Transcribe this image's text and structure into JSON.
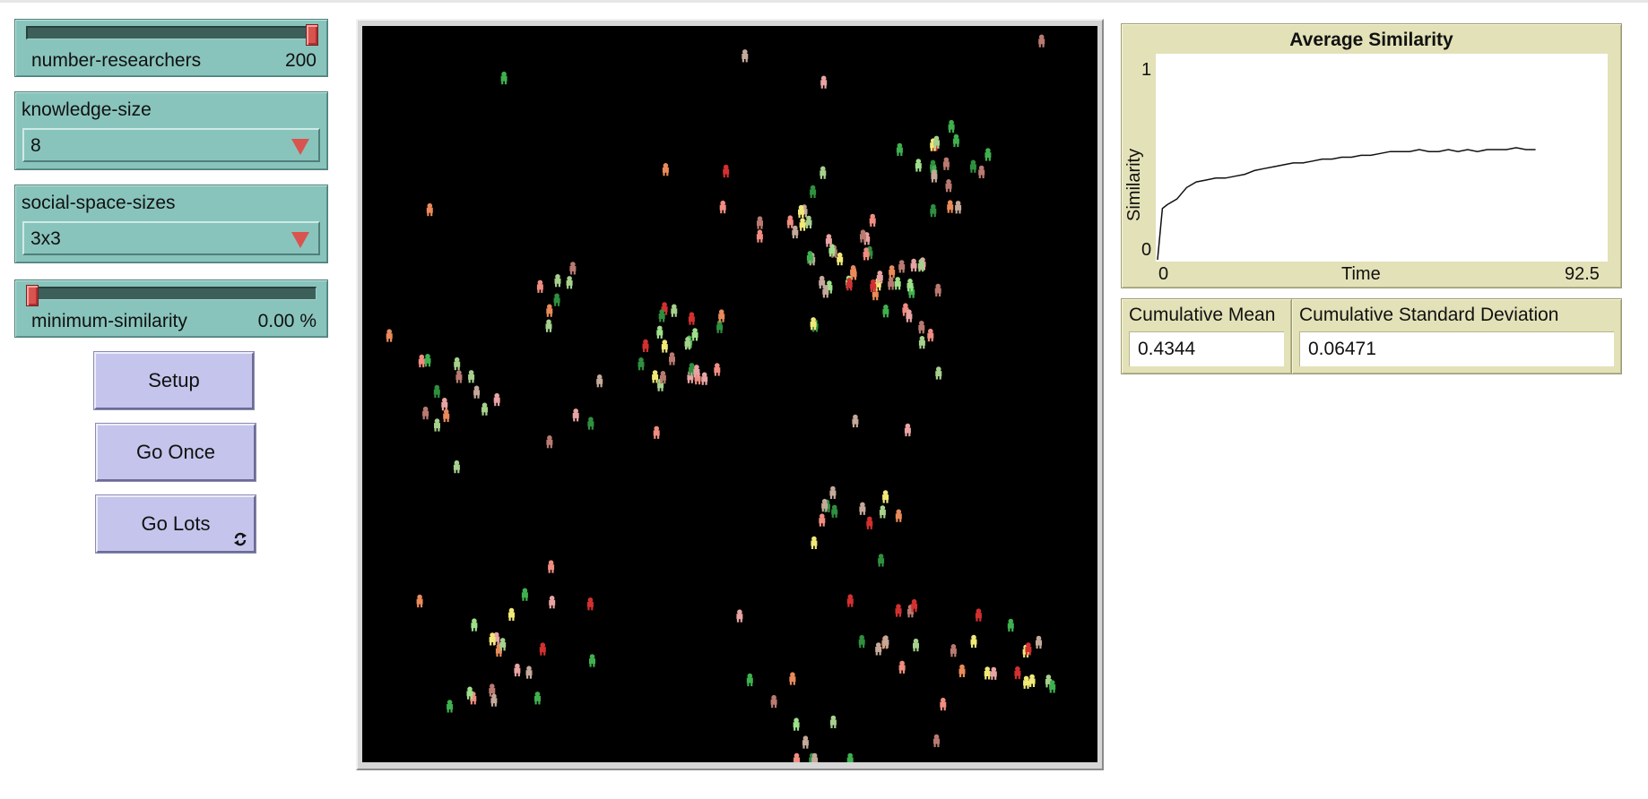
{
  "sliders": {
    "number_researchers": {
      "label": "number-researchers",
      "value": "200",
      "fraction": 1.0
    },
    "minimum_similarity": {
      "label": "minimum-similarity",
      "value": "0.00 %",
      "fraction": 0.0
    }
  },
  "choosers": {
    "knowledge_size": {
      "label": "knowledge-size",
      "value": "8"
    },
    "social_space_sizes": {
      "label": "social-space-sizes",
      "value": "3x3"
    }
  },
  "buttons": {
    "setup": "Setup",
    "go_once": "Go Once",
    "go_lots": "Go Lots"
  },
  "colors": {
    "slider_bg": "#88c4bc",
    "button_bg": "#c4c4ec",
    "plot_bg": "#e3e1b7",
    "world_bg": "#000000",
    "thumb": "#d9534f"
  },
  "plot": {
    "title": "Average Similarity",
    "ylabel": "Similarity",
    "xlabel": "Time",
    "y_max_label": "1",
    "y_min_label": "0",
    "x_min_label": "0",
    "x_max_label": "92.5"
  },
  "chart_data": {
    "type": "line",
    "title": "Average Similarity",
    "xlabel": "Time",
    "ylabel": "Similarity",
    "xlim": [
      0,
      92.5
    ],
    "ylim": [
      0,
      1
    ],
    "grid": false,
    "series": [
      {
        "x": [
          0,
          1,
          2,
          4,
          6,
          8,
          10,
          12,
          14,
          16,
          18,
          20,
          22,
          24,
          26,
          28,
          30,
          32,
          34,
          36,
          38,
          40,
          42,
          44,
          46,
          48,
          50,
          52,
          54,
          56,
          58,
          60,
          62,
          64,
          66,
          68,
          70,
          72,
          74,
          76,
          78
        ],
        "y": [
          0,
          0.27,
          0.29,
          0.32,
          0.38,
          0.41,
          0.42,
          0.43,
          0.43,
          0.44,
          0.45,
          0.47,
          0.48,
          0.49,
          0.5,
          0.51,
          0.51,
          0.52,
          0.53,
          0.53,
          0.54,
          0.54,
          0.55,
          0.55,
          0.56,
          0.57,
          0.57,
          0.57,
          0.58,
          0.57,
          0.57,
          0.58,
          0.57,
          0.58,
          0.57,
          0.58,
          0.58,
          0.58,
          0.59,
          0.58,
          0.58
        ]
      }
    ]
  },
  "monitors": {
    "cumulative_mean": {
      "label": "Cumulative Mean",
      "value": "0.4344"
    },
    "cumulative_sd": {
      "label": "Cumulative Standard Deviation",
      "value": "0.06471"
    }
  },
  "world": {
    "agent_count": 200,
    "agent_colors": [
      "#f0e878",
      "#9ee08a",
      "#3fb04e",
      "#f08c80",
      "#e98a5a",
      "#c4a99a",
      "#d23030",
      "#a6d08c",
      "#e8a3a3",
      "#2f8f3f",
      "#b87a70"
    ]
  }
}
